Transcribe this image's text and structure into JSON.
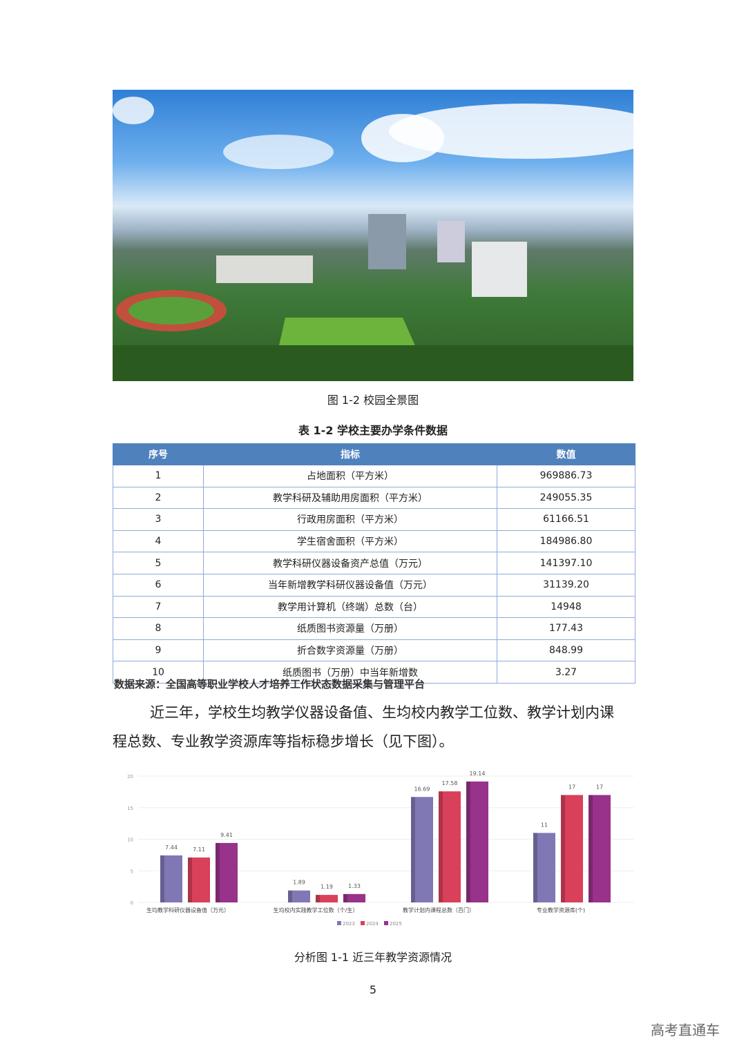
{
  "figure1": {
    "caption": "图 1-2 校园全景图"
  },
  "table": {
    "title": "表 1-2 学校主要办学条件数据",
    "headers": [
      "序号",
      "指标",
      "数值"
    ],
    "rows": [
      [
        "1",
        "占地面积（平方米）",
        "969886.73"
      ],
      [
        "2",
        "教学科研及辅助用房面积（平方米）",
        "249055.35"
      ],
      [
        "3",
        "行政用房面积（平方米）",
        "61166.51"
      ],
      [
        "4",
        "学生宿舍面积（平方米）",
        "184986.80"
      ],
      [
        "5",
        "教学科研仪器设备资产总值（万元）",
        "141397.10"
      ],
      [
        "6",
        "当年新增教学科研仪器设备值（万元）",
        "31139.20"
      ],
      [
        "7",
        "教学用计算机（终端）总数（台）",
        "14948"
      ],
      [
        "8",
        "纸质图书资源量（万册）",
        "177.43"
      ],
      [
        "9",
        "折合数字资源量（万册）",
        "848.99"
      ],
      [
        "10",
        "纸质图书（万册）中当年新增数",
        "3.27"
      ]
    ],
    "source": "数据来源：全国高等职业学校人才培养工作状态数据采集与管理平台"
  },
  "paragraph": {
    "line1": "近三年，学校生均教学仪器设备值、生均校内教学工位数、教学计划内课",
    "line2": "程总数、专业教学资源库等指标稳步增长（见下图）。"
  },
  "chart_data": {
    "type": "bar",
    "categories": [
      "生均教学科研仪器设备值（万元）",
      "生均校内实践教学工位数（个/生）",
      "教学计划内课程总数（百门）",
      "专业教学资源库(个)"
    ],
    "series": [
      {
        "name": "2023",
        "values": [
          7.44,
          1.89,
          16.69,
          11
        ],
        "color": "#8078b4"
      },
      {
        "name": "2024",
        "values": [
          7.11,
          1.19,
          17.58,
          17
        ],
        "color": "#d9405a"
      },
      {
        "name": "2025",
        "values": [
          9.41,
          1.33,
          19.14,
          17
        ],
        "color": "#98328a"
      }
    ],
    "ylim": [
      0,
      20
    ],
    "yticks": [
      "0",
      "5",
      "10",
      "15",
      "20"
    ],
    "grid": true,
    "legend": "bottom"
  },
  "chart_caption": "分析图 1-1 近三年教学资源情况",
  "page_number": "5",
  "watermark": "高考直通车"
}
